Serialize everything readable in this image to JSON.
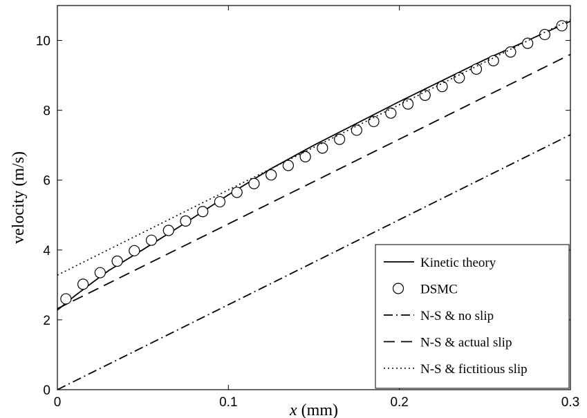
{
  "chart_data": {
    "type": "line",
    "xlabel_var": "x",
    "xlabel_unit": " (mm)",
    "ylabel": "velocity (m/s)",
    "xlim": [
      0,
      0.3
    ],
    "ylim": [
      0,
      11
    ],
    "xticks": [
      0,
      0.1,
      0.2,
      0.3
    ],
    "xtick_labels": [
      "0",
      "0.1",
      "0.2",
      "0.3"
    ],
    "yticks": [
      0,
      2,
      4,
      6,
      8,
      10
    ],
    "ytick_labels": [
      "0",
      "2",
      "4",
      "6",
      "8",
      "10"
    ],
    "grid": false,
    "legend_placement": "bottom-right",
    "series": [
      {
        "name": "Kinetic theory",
        "style": "solid",
        "x": [
          0,
          0.005,
          0.01,
          0.02,
          0.03,
          0.05,
          0.075,
          0.1,
          0.125,
          0.15,
          0.2,
          0.25,
          0.3
        ],
        "y": [
          2.28,
          2.48,
          2.68,
          3.05,
          3.41,
          4.01,
          4.78,
          5.58,
          6.33,
          7.0,
          8.25,
          9.45,
          10.55
        ]
      },
      {
        "name": "DSMC",
        "style": "circles",
        "x": [
          0.005,
          0.015,
          0.025,
          0.035,
          0.045,
          0.055,
          0.065,
          0.075,
          0.085,
          0.095,
          0.105,
          0.115,
          0.125,
          0.135,
          0.145,
          0.155,
          0.165,
          0.175,
          0.185,
          0.195,
          0.205,
          0.215,
          0.225,
          0.235,
          0.245,
          0.255,
          0.265,
          0.275,
          0.285,
          0.295
        ],
        "y": [
          2.6,
          3.02,
          3.35,
          3.68,
          3.98,
          4.28,
          4.56,
          4.83,
          5.1,
          5.38,
          5.65,
          5.9,
          6.15,
          6.42,
          6.67,
          6.92,
          7.17,
          7.43,
          7.68,
          7.92,
          8.18,
          8.43,
          8.68,
          8.93,
          9.18,
          9.42,
          9.67,
          9.92,
          10.17,
          10.42
        ]
      },
      {
        "name": "N-S & no slip",
        "style": "dashdot",
        "x": [
          0,
          0.3
        ],
        "y": [
          0,
          7.3
        ]
      },
      {
        "name": "N-S & actual slip",
        "style": "dashed",
        "x": [
          0,
          0.3
        ],
        "y": [
          2.32,
          9.6
        ]
      },
      {
        "name": "N-S & fictitious slip",
        "style": "dotted",
        "x": [
          0,
          0.3
        ],
        "y": [
          3.28,
          10.6
        ]
      }
    ]
  }
}
